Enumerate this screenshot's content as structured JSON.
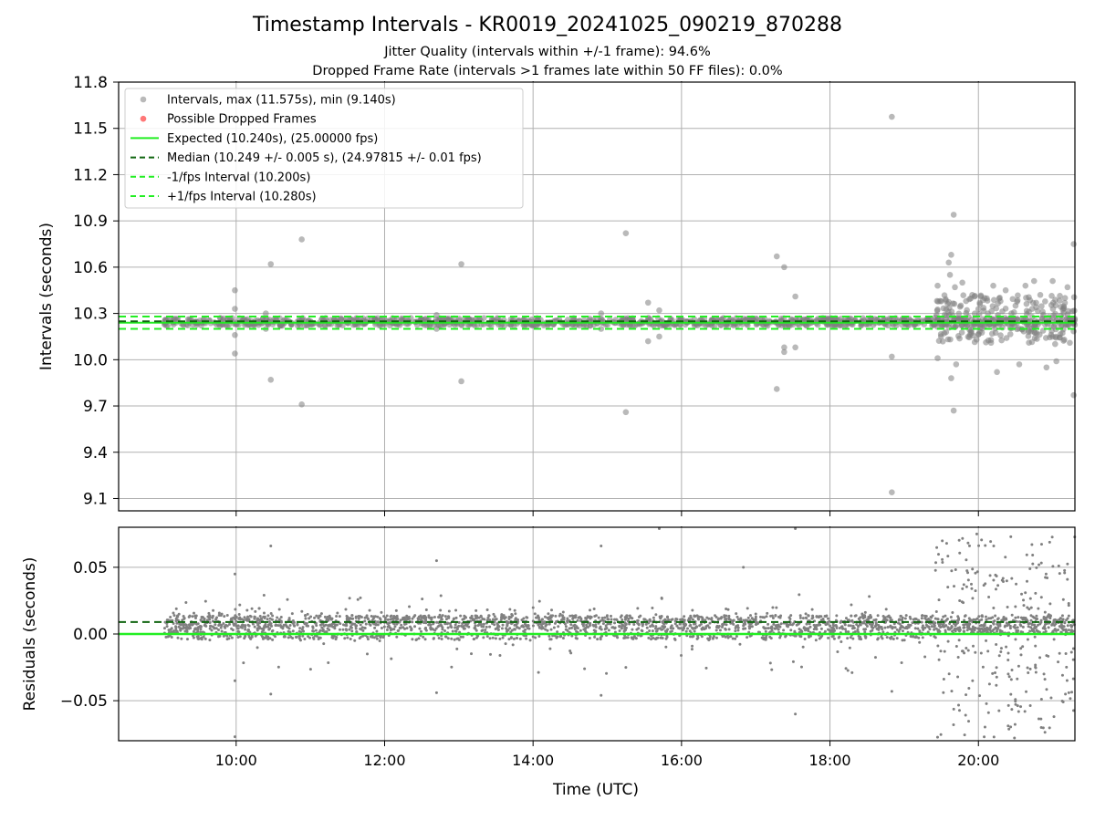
{
  "title": "Timestamp Intervals - KR0019_20241025_090219_870288",
  "subtitle_lines": [
    "Jitter Quality (intervals within +/-1 frame): 94.6%",
    "Dropped Frame Rate (intervals >1 frames late within 50 FF files): 0.0%"
  ],
  "colors": {
    "points": "#808080",
    "dropped": "#ff5555",
    "expected": "#22ee22",
    "median": "#116611",
    "fps_bounds": "#22ee22",
    "grid": "#b0b0b0"
  },
  "chart_data": [
    {
      "type": "scatter",
      "ylabel": "Intervals (seconds)",
      "xlim": [
        "08:25",
        "21:18"
      ],
      "ylim": [
        9.02,
        11.8
      ],
      "yticks": [
        "9.1",
        "9.4",
        "9.7",
        "10.0",
        "10.3",
        "10.6",
        "10.9",
        "11.2",
        "11.5",
        "11.8"
      ],
      "xticks": [
        "10:00",
        "12:00",
        "14:00",
        "16:00",
        "18:00",
        "20:00"
      ],
      "grid": true,
      "legend_position": "upper-left",
      "legend": [
        "Intervals, max (11.575s), min (9.140s)",
        "Possible Dropped Frames",
        "Expected (10.240s), (25.00000 fps)",
        "Median (10.249 +/- 0.005 s), (24.97815 +/- 0.01 fps)",
        "-1/fps Interval (10.200s)",
        "+1/fps Interval (10.280s)"
      ],
      "expected": 10.24,
      "median": 10.249,
      "minus_fps": 10.2,
      "plus_fps": 10.28,
      "data_start": "09:02",
      "band_points": {
        "count": 1100,
        "y_range": [
          10.22,
          10.27
        ]
      },
      "outliers": [
        [
          "09:59",
          10.45
        ],
        [
          "09:59",
          10.33
        ],
        [
          "09:59",
          10.16
        ],
        [
          "09:59",
          10.04
        ],
        [
          "10:24",
          10.3
        ],
        [
          "10:24",
          10.2
        ],
        [
          "10:28",
          10.62
        ],
        [
          "10:28",
          9.87
        ],
        [
          "10:53",
          10.78
        ],
        [
          "10:53",
          9.71
        ],
        [
          "12:42",
          10.29
        ],
        [
          "12:42",
          10.2
        ],
        [
          "13:02",
          10.62
        ],
        [
          "13:02",
          9.86
        ],
        [
          "14:55",
          10.3
        ],
        [
          "14:55",
          10.2
        ],
        [
          "15:15",
          10.82
        ],
        [
          "15:15",
          9.66
        ],
        [
          "15:33",
          10.37
        ],
        [
          "15:33",
          10.12
        ],
        [
          "15:42",
          10.32
        ],
        [
          "15:42",
          10.15
        ],
        [
          "17:17",
          10.67
        ],
        [
          "17:17",
          9.81
        ],
        [
          "17:23",
          10.6
        ],
        [
          "17:23",
          10.08
        ],
        [
          "17:23",
          10.05
        ],
        [
          "17:32",
          10.41
        ],
        [
          "17:32",
          10.08
        ],
        [
          "18:50",
          11.575
        ],
        [
          "18:50",
          10.02
        ],
        [
          "18:50",
          9.14
        ],
        [
          "21:17",
          10.75
        ],
        [
          "21:17",
          9.77
        ]
      ],
      "night_cluster": {
        "range": [
          "19:25",
          "21:18"
        ],
        "points": [
          [
            "19:27",
            10.48
          ],
          [
            "19:27",
            10.01
          ],
          [
            "19:36",
            10.63
          ],
          [
            "19:37",
            10.55
          ],
          [
            "19:38",
            10.68
          ],
          [
            "19:38",
            9.88
          ],
          [
            "19:40",
            10.94
          ],
          [
            "19:40",
            9.67
          ],
          [
            "19:41",
            10.47
          ],
          [
            "19:42",
            9.97
          ],
          [
            "19:47",
            10.5
          ],
          [
            "19:50",
            10.38
          ],
          [
            "19:55",
            10.42
          ],
          [
            "20:05",
            10.4
          ],
          [
            "20:12",
            10.48
          ],
          [
            "20:15",
            9.92
          ],
          [
            "20:22",
            10.45
          ],
          [
            "20:30",
            10.35
          ],
          [
            "20:33",
            9.97
          ],
          [
            "20:38",
            10.48
          ],
          [
            "20:45",
            10.51
          ],
          [
            "20:50",
            10.42
          ],
          [
            "20:55",
            9.95
          ],
          [
            "21:00",
            10.51
          ],
          [
            "21:03",
            9.99
          ],
          [
            "21:10",
            10.4
          ],
          [
            "21:12",
            10.47
          ]
        ]
      }
    },
    {
      "type": "scatter",
      "ylabel": "Residuals (seconds)",
      "xlabel": "Time (UTC)",
      "xlim": [
        "08:25",
        "21:18"
      ],
      "ylim": [
        -0.08,
        0.08
      ],
      "yticks": [
        "−0.05",
        "0.00",
        "0.05"
      ],
      "xticks": [
        "10:00",
        "12:00",
        "14:00",
        "16:00",
        "18:00",
        "20:00"
      ],
      "grid": true,
      "expected_residual": 0.0,
      "median_residual": 0.009,
      "band_points": {
        "count": 2200,
        "y_range": [
          -0.005,
          0.02
        ]
      },
      "outliers": [
        [
          "09:59",
          0.045
        ],
        [
          "09:59",
          -0.035
        ],
        [
          "09:59",
          -0.077
        ],
        [
          "10:28",
          0.066
        ],
        [
          "10:28",
          -0.045
        ],
        [
          "12:42",
          0.055
        ],
        [
          "12:42",
          -0.044
        ],
        [
          "14:55",
          0.066
        ],
        [
          "14:55",
          -0.046
        ],
        [
          "15:15",
          -0.025
        ],
        [
          "15:42",
          0.079
        ],
        [
          "16:50",
          0.05
        ],
        [
          "17:32",
          0.079
        ],
        [
          "17:32",
          -0.06
        ],
        [
          "18:50",
          -0.043
        ]
      ],
      "night_cluster": {
        "range": [
          "19:25",
          "21:18"
        ],
        "count": 260,
        "y_range": [
          -0.08,
          0.075
        ]
      }
    }
  ]
}
